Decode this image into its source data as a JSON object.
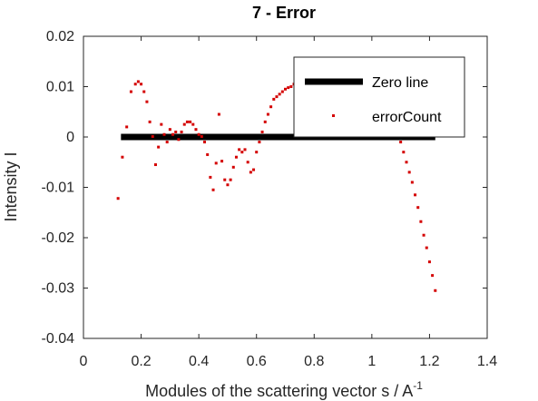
{
  "chart_data": {
    "type": "line+scatter",
    "title": "7 - Error",
    "xlabel": "Modules of the scattering vector s / A",
    "xlabel_superscript": "-1",
    "ylabel": "Intensity I",
    "xlim": [
      0,
      1.4
    ],
    "ylim": [
      -0.04,
      0.02
    ],
    "xticks": [
      "0",
      "0.2",
      "0.4",
      "0.6",
      "0.8",
      "1",
      "1.2",
      "1.4"
    ],
    "yticks": [
      "0.02",
      "0.01",
      "0",
      "-0.01",
      "-0.02",
      "-0.03",
      "-0.04"
    ],
    "grid": false,
    "legend_placement": "top-right",
    "colors": {
      "zero_line": "#000000",
      "error_points": "#d40000"
    },
    "series": [
      {
        "name": "Zero line",
        "kind": "line",
        "x": [
          0.13,
          1.22
        ],
        "y": [
          0,
          0
        ]
      },
      {
        "name": "errorCount",
        "kind": "scatter",
        "x": [
          0.12,
          0.135,
          0.15,
          0.165,
          0.18,
          0.19,
          0.2,
          0.21,
          0.22,
          0.23,
          0.24,
          0.25,
          0.26,
          0.27,
          0.28,
          0.29,
          0.3,
          0.31,
          0.32,
          0.33,
          0.34,
          0.35,
          0.36,
          0.37,
          0.38,
          0.39,
          0.4,
          0.41,
          0.42,
          0.43,
          0.44,
          0.45,
          0.46,
          0.47,
          0.48,
          0.49,
          0.5,
          0.51,
          0.52,
          0.53,
          0.54,
          0.55,
          0.56,
          0.57,
          0.58,
          0.59,
          0.6,
          0.61,
          0.62,
          0.63,
          0.64,
          0.65,
          0.66,
          0.67,
          0.68,
          0.69,
          0.7,
          0.71,
          0.72,
          0.73,
          0.74,
          0.87,
          1.1,
          1.11,
          1.12,
          1.13,
          1.14,
          1.15,
          1.16,
          1.17,
          1.18,
          1.19,
          1.2,
          1.21,
          1.22
        ],
        "y": [
          -0.0122,
          -0.004,
          0.002,
          0.009,
          0.0105,
          0.011,
          0.0105,
          0.009,
          0.007,
          0.003,
          0.0001,
          -0.0055,
          -0.002,
          0.0025,
          0.0005,
          -0.001,
          0.0015,
          0.0005,
          0.001,
          -0.0005,
          0.001,
          0.0025,
          0.003,
          0.003,
          0.0025,
          0.0015,
          0.0005,
          0.0001,
          -0.001,
          -0.0035,
          -0.008,
          -0.0105,
          -0.0052,
          0.0045,
          -0.0048,
          -0.0085,
          -0.0095,
          -0.0085,
          -0.006,
          -0.004,
          -0.0025,
          -0.003,
          -0.0025,
          -0.005,
          -0.007,
          -0.0065,
          -0.003,
          -0.001,
          0.001,
          0.003,
          0.0045,
          0.006,
          0.0075,
          0.008,
          0.0085,
          0.009,
          0.0095,
          0.0098,
          0.01,
          0.0105,
          0.011,
          0.0042,
          -0.001,
          -0.003,
          -0.005,
          -0.007,
          -0.009,
          -0.0115,
          -0.014,
          -0.0168,
          -0.0195,
          -0.022,
          -0.0248,
          -0.0275,
          -0.0305
        ]
      }
    ]
  }
}
